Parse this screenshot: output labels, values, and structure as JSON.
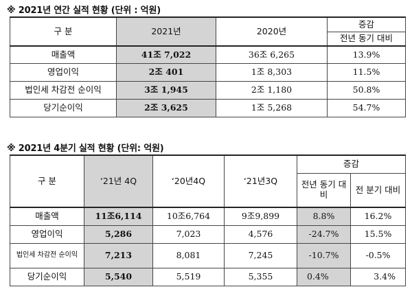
{
  "table1": {
    "title": "※ 2021년  연간 실적 현황 (단위 : 억원)",
    "headers": {
      "category": "구 분",
      "col_2021": "2021년",
      "col_2020": "2020년",
      "change": "증감",
      "yoy": "전년 동기 대비"
    },
    "rows": [
      {
        "label": "매출액",
        "v2021": "41조 7,022",
        "v2020": "36조 6,265",
        "yoy": "13.9%"
      },
      {
        "label": "영업이익",
        "v2021": "2조 401",
        "v2020": "1조 8,303",
        "yoy": "11.5%"
      },
      {
        "label": "법인세 차감전 순이익",
        "v2021": "3조 1,945",
        "v2020": "2조 1,180",
        "yoy": "50.8%"
      },
      {
        "label": "당기순이익",
        "v2021": "2조 3,625",
        "v2020": "1조 5,268",
        "yoy": "54.7%"
      }
    ]
  },
  "table2": {
    "title": "※ 2021년  4분기 실적 현황 (단위: 억원)",
    "headers": {
      "category": "구 분",
      "col_21q4": "‘21년 4Q",
      "col_20q4": "‘20년4Q",
      "col_21q3": "‘21년3Q",
      "change": "증감",
      "yoy": "전년 동기 대비",
      "qoq": "전 분기 대비"
    },
    "rows": [
      {
        "label": "매출액",
        "q21_4": "11조6,114",
        "q20_4": "10조6,764",
        "q21_3": "9조9,899",
        "yoy": "8.8%",
        "qoq": "16.2%"
      },
      {
        "label": "영업이익",
        "q21_4": "5,286",
        "q20_4": "7,023",
        "q21_3": "4,576",
        "yoy": "-24.7%",
        "qoq": "15.5%"
      },
      {
        "label": "법인세 차감전 순이익",
        "q21_4": "7,213",
        "q20_4": "8,081",
        "q21_3": "7,245",
        "yoy": "-10.7%",
        "qoq": "-0.5%"
      },
      {
        "label": "당기순이익",
        "q21_4": "5,540",
        "q20_4": "5,519",
        "q21_3": "5,355",
        "yoy": "0.4%",
        "qoq": "3.4%"
      }
    ]
  }
}
